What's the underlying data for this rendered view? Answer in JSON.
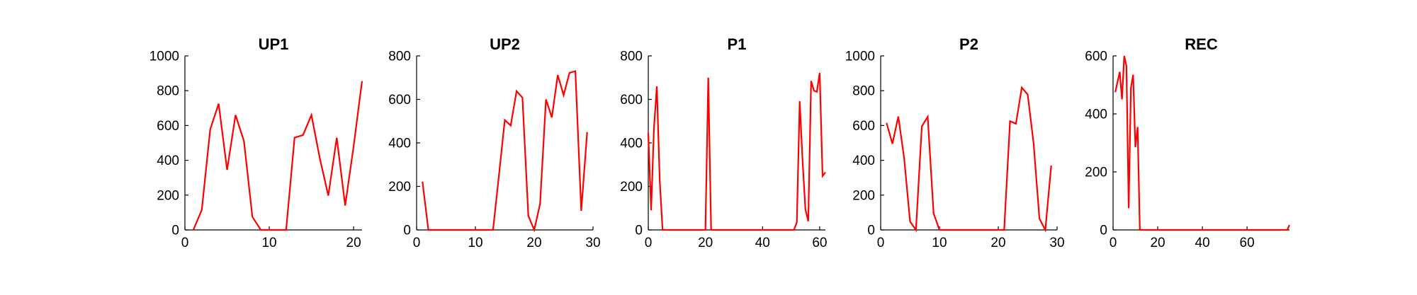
{
  "colors": {
    "line": "#ff0000",
    "axes": "#000000",
    "background": "#ffffff"
  },
  "chart_data": [
    {
      "type": "line",
      "title": "UP1",
      "xlabel": "",
      "ylabel": "",
      "xlim": [
        0,
        21
      ],
      "ylim": [
        0,
        1000
      ],
      "xticks": [
        0,
        10,
        20
      ],
      "yticks": [
        0,
        200,
        400,
        600,
        800,
        1000
      ],
      "grid": false,
      "x": [
        1,
        2,
        3,
        4,
        5,
        6,
        7,
        8,
        9,
        10,
        11,
        12,
        13,
        14,
        15,
        16,
        17,
        18,
        19,
        20,
        21
      ],
      "series": [
        {
          "values": [
            0,
            115,
            578,
            725,
            345,
            660,
            510,
            75,
            0,
            0,
            0,
            0,
            530,
            545,
            660,
            410,
            197,
            530,
            140,
            480,
            855
          ]
        }
      ]
    },
    {
      "type": "line",
      "title": "UP2",
      "xlabel": "",
      "ylabel": "",
      "xlim": [
        0,
        30
      ],
      "ylim": [
        0,
        800
      ],
      "xticks": [
        0,
        10,
        20,
        30
      ],
      "yticks": [
        0,
        200,
        400,
        600,
        800
      ],
      "grid": false,
      "x": [
        1,
        2,
        3,
        4,
        5,
        6,
        7,
        8,
        9,
        10,
        11,
        12,
        13,
        14,
        15,
        16,
        17,
        18,
        19,
        20,
        21,
        22,
        23,
        24,
        25,
        26,
        27,
        28,
        29
      ],
      "series": [
        {
          "values": [
            222,
            0,
            0,
            0,
            0,
            0,
            0,
            0,
            0,
            0,
            0,
            0,
            0,
            250,
            505,
            480,
            638,
            608,
            65,
            0,
            120,
            600,
            517,
            712,
            620,
            722,
            730,
            88,
            450
          ]
        }
      ]
    },
    {
      "type": "line",
      "title": "P1",
      "xlabel": "",
      "ylabel": "",
      "xlim": [
        0,
        62
      ],
      "ylim": [
        0,
        800
      ],
      "xticks": [
        0,
        20,
        40,
        60
      ],
      "yticks": [
        0,
        200,
        400,
        600,
        800
      ],
      "grid": false,
      "x": [
        0,
        1,
        2,
        3,
        4,
        5,
        6,
        7,
        8,
        9,
        10,
        11,
        12,
        13,
        14,
        15,
        16,
        17,
        18,
        19,
        20,
        21,
        22,
        23,
        24,
        25,
        26,
        27,
        28,
        29,
        30,
        31,
        32,
        33,
        34,
        35,
        36,
        37,
        38,
        39,
        40,
        41,
        42,
        43,
        44,
        45,
        46,
        47,
        48,
        49,
        50,
        51,
        52,
        53,
        54,
        55,
        56,
        57,
        58,
        59,
        60,
        61,
        62
      ],
      "series": [
        {
          "values": [
            445,
            90,
            470,
            660,
            230,
            0,
            0,
            0,
            0,
            0,
            0,
            0,
            0,
            0,
            0,
            0,
            0,
            0,
            0,
            0,
            0,
            700,
            0,
            0,
            0,
            0,
            0,
            0,
            0,
            0,
            0,
            0,
            0,
            0,
            0,
            0,
            0,
            0,
            0,
            0,
            0,
            0,
            0,
            0,
            0,
            0,
            0,
            0,
            0,
            0,
            0,
            0,
            35,
            592,
            320,
            95,
            40,
            685,
            640,
            635,
            722,
            248,
            265
          ]
        }
      ]
    },
    {
      "type": "line",
      "title": "P2",
      "xlabel": "",
      "ylabel": "",
      "xlim": [
        0,
        30
      ],
      "ylim": [
        0,
        1000
      ],
      "xticks": [
        0,
        10,
        20,
        30
      ],
      "yticks": [
        0,
        200,
        400,
        600,
        800,
        1000
      ],
      "grid": false,
      "x": [
        1,
        2,
        3,
        4,
        5,
        6,
        7,
        8,
        9,
        10,
        11,
        12,
        13,
        14,
        15,
        16,
        17,
        18,
        19,
        20,
        21,
        22,
        23,
        24,
        25,
        26,
        27,
        28,
        29
      ],
      "series": [
        {
          "values": [
            615,
            495,
            652,
            410,
            48,
            0,
            595,
            650,
            95,
            0,
            0,
            0,
            0,
            0,
            0,
            0,
            0,
            0,
            0,
            0,
            0,
            625,
            610,
            818,
            778,
            500,
            65,
            0,
            370
          ]
        }
      ]
    },
    {
      "type": "line",
      "title": "REC",
      "xlabel": "",
      "ylabel": "",
      "xlim": [
        0,
        79
      ],
      "ylim": [
        0,
        600
      ],
      "xticks": [
        0,
        20,
        40,
        60
      ],
      "yticks": [
        0,
        200,
        400,
        600
      ],
      "grid": false,
      "x": [
        1,
        2,
        3,
        4,
        5,
        6,
        7,
        8,
        9,
        10,
        11,
        12,
        13,
        14,
        15,
        16,
        17,
        18,
        19,
        20,
        21,
        22,
        23,
        24,
        25,
        26,
        27,
        28,
        29,
        30,
        31,
        32,
        33,
        34,
        35,
        36,
        37,
        38,
        39,
        40,
        41,
        42,
        43,
        44,
        45,
        46,
        47,
        48,
        49,
        50,
        51,
        52,
        53,
        54,
        55,
        56,
        57,
        58,
        59,
        60,
        61,
        62,
        63,
        64,
        65,
        66,
        67,
        68,
        69,
        70,
        71,
        72,
        73,
        74,
        75,
        76,
        77,
        78,
        79
      ],
      "series": [
        {
          "values": [
            475,
            510,
            545,
            450,
            600,
            565,
            75,
            490,
            535,
            285,
            355,
            0,
            0,
            0,
            0,
            0,
            0,
            0,
            0,
            0,
            0,
            0,
            0,
            0,
            0,
            0,
            0,
            0,
            0,
            0,
            0,
            0,
            0,
            0,
            0,
            0,
            0,
            0,
            0,
            0,
            0,
            0,
            0,
            0,
            0,
            0,
            0,
            0,
            0,
            0,
            0,
            0,
            0,
            0,
            0,
            0,
            0,
            0,
            0,
            0,
            0,
            0,
            0,
            0,
            0,
            0,
            0,
            0,
            0,
            0,
            0,
            0,
            0,
            0,
            0,
            0,
            0,
            0,
            17
          ]
        }
      ]
    }
  ]
}
